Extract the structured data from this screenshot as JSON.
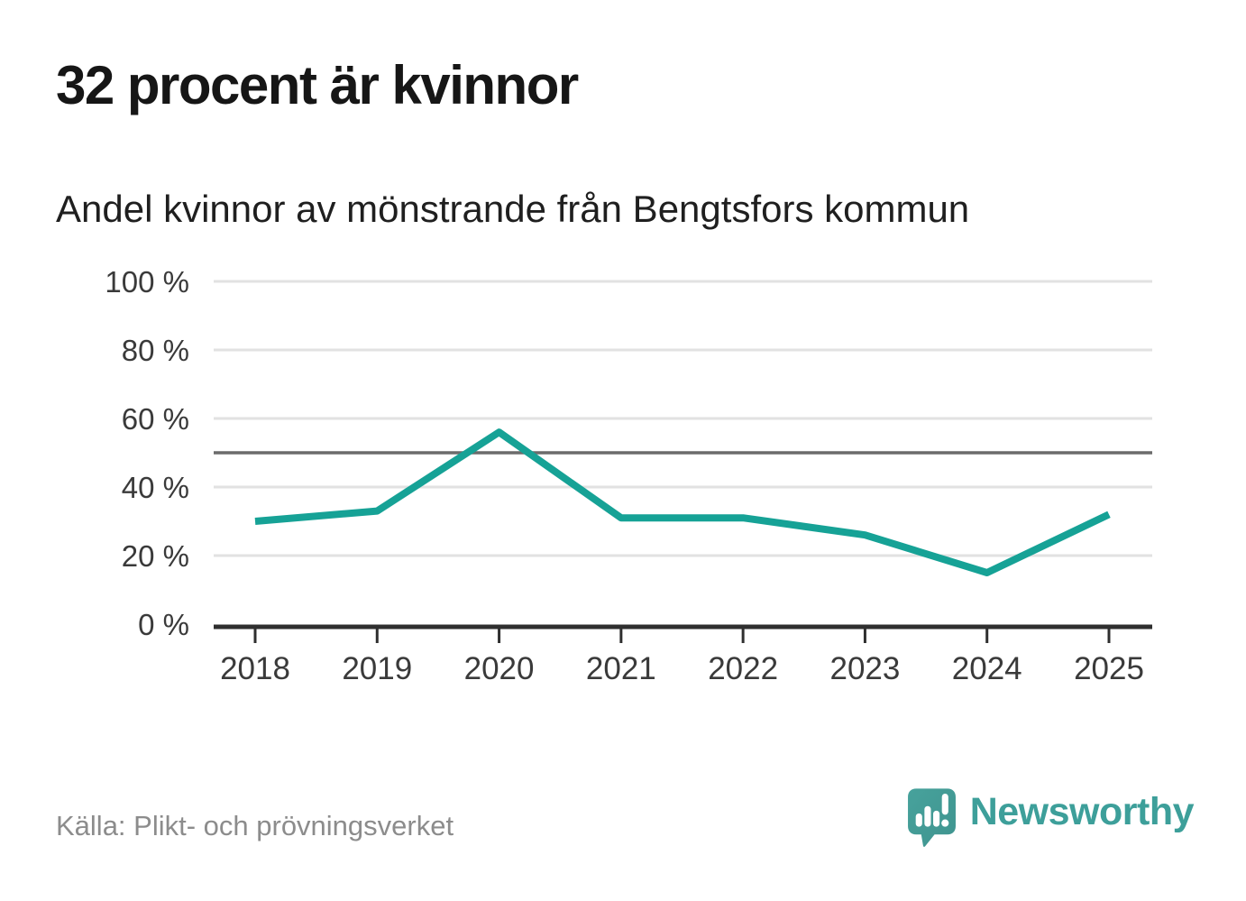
{
  "header": {
    "title": "32 procent är kvinnor",
    "subtitle": "Andel kvinnor av mönstrande från Bengtsfors kommun"
  },
  "chart_data": {
    "type": "line",
    "title": "32 procent är kvinnor",
    "subtitle": "Andel kvinnor av mönstrande från Bengtsfors kommun",
    "x": [
      "2018",
      "2019",
      "2020",
      "2021",
      "2022",
      "2023",
      "2024",
      "2025"
    ],
    "series": [
      {
        "name": "Andel kvinnor av mönstrande",
        "values": [
          30,
          33,
          56,
          31,
          31,
          26,
          15,
          32
        ]
      }
    ],
    "xlabel": "",
    "ylabel": "",
    "ylim": [
      0,
      100
    ],
    "yticks": [
      0,
      20,
      40,
      60,
      80,
      100
    ],
    "ytick_format": "{v} %",
    "reference_line": 50,
    "grid": true,
    "legend": "none",
    "line_color": "#16a296",
    "grid_color": "#e2e2e2",
    "reference_line_color": "#6b6b6b",
    "axis_color": "#2f2f2f",
    "label_color": "#3a3a3a"
  },
  "footer": {
    "source": "Källa: Plikt- och prövningsverket",
    "brand": "Newsworthy",
    "brand_color": "#3d9f9a",
    "icon_color": "#47a29c",
    "icon_color_dark": "#3f948f"
  }
}
